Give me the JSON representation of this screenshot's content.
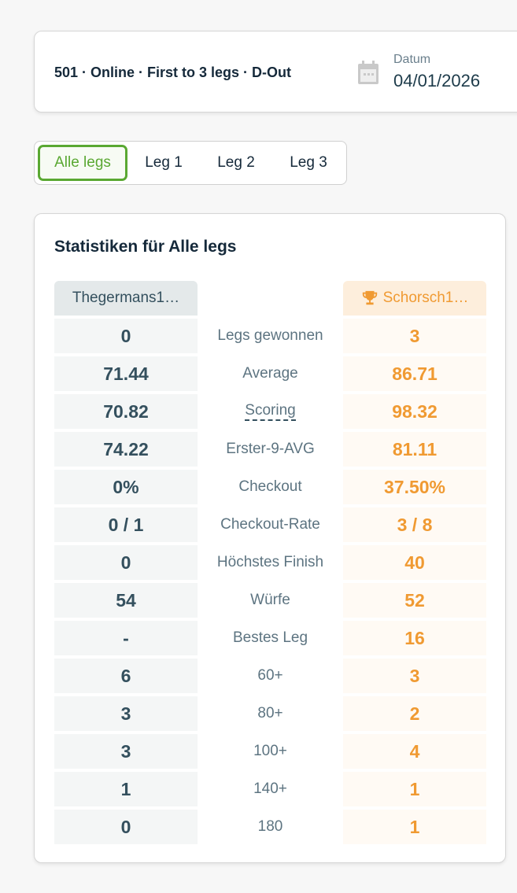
{
  "header": {
    "title": "501 · Online · First to 3 legs · D-Out",
    "date_label": "Datum",
    "date_value": "04/01/2026",
    "icon": "calendar-icon"
  },
  "tabs": [
    {
      "label": "Alle legs",
      "active": true
    },
    {
      "label": "Leg 1"
    },
    {
      "label": "Leg 2"
    },
    {
      "label": "Leg 3"
    }
  ],
  "stats": {
    "title": "Statistiken für Alle legs",
    "player_left": "Thegermans1…",
    "player_right": "Schorsch1…",
    "winner_icon": "trophy-icon",
    "rows": [
      {
        "label": "Legs gewonnen",
        "left": "0",
        "right": "3"
      },
      {
        "label": "Average",
        "left": "71.44",
        "right": "86.71"
      },
      {
        "label": "Scoring",
        "left": "70.82",
        "right": "98.32"
      },
      {
        "label": "Erster-9-AVG",
        "left": "74.22",
        "right": "81.11"
      },
      {
        "label": "Checkout",
        "left": "0%",
        "right": "37.50%"
      },
      {
        "label": "Checkout-Rate",
        "left": "0 / 1",
        "right": "3 / 8"
      },
      {
        "label": "Höchstes Finish",
        "left": "0",
        "right": "40"
      },
      {
        "label": "Würfe",
        "left": "54",
        "right": "52"
      },
      {
        "label": "Bestes Leg",
        "left": "-",
        "right": "16"
      },
      {
        "label": "60+",
        "left": "6",
        "right": "3"
      },
      {
        "label": "80+",
        "left": "3",
        "right": "2"
      },
      {
        "label": "100+",
        "left": "3",
        "right": "4"
      },
      {
        "label": "140+",
        "left": "1",
        "right": "1"
      },
      {
        "label": "180",
        "left": "0",
        "right": "1"
      }
    ]
  },
  "colors": {
    "accent_green": "#5aa832",
    "winner_orange": "#f09a32"
  }
}
